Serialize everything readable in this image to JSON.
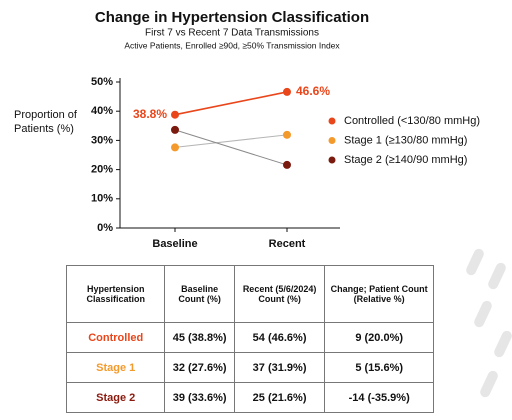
{
  "chart_data": {
    "type": "line",
    "title": "Change in Hypertension Classification",
    "subtitle": "First 7 vs Recent 7 Data Transmissions",
    "note": "Active Patients, Enrolled ≥90d,  ≥50% Transmission Index",
    "y_label": "Proportion of Patients (%)",
    "categories": [
      "Baseline",
      "Recent"
    ],
    "ylim": [
      0,
      50
    ],
    "yticks": [
      {
        "value": 0,
        "label": "0%"
      },
      {
        "value": 10,
        "label": "10%"
      },
      {
        "value": 20,
        "label": "20%"
      },
      {
        "value": 30,
        "label": "30%"
      },
      {
        "value": 40,
        "label": "40%"
      },
      {
        "value": 50,
        "label": "50%"
      }
    ],
    "legend": "right",
    "series": [
      {
        "name": "Controlled (<130/80 mmHg)",
        "color": "#e9461b",
        "line_color": "#e9461b",
        "values": [
          38.8,
          46.6
        ],
        "value_labels": [
          "38.8%",
          "46.6%"
        ]
      },
      {
        "name": "Stage 1 (≥130/80 mmHg)",
        "color": "#f49a2c",
        "line_color": "#b5b5b5",
        "values": [
          27.6,
          31.9
        ]
      },
      {
        "name": "Stage 2 (≥140/90 mmHg)",
        "color": "#7b1a0e",
        "line_color": "#8a8a8a",
        "values": [
          33.6,
          21.6
        ]
      }
    ]
  },
  "table": {
    "columns": [
      "Hypertension Classification",
      "Baseline Count (%)",
      "Recent (5/6/2024) Count (%)",
      "Change; Patient Count (Relative %)"
    ],
    "rows": [
      [
        "Controlled",
        "45 (38.8%)",
        "54 (46.6%)",
        "9 (20.0%)"
      ],
      [
        "Stage 1",
        "32 (27.6%)",
        "37 (31.9%)",
        "5 (15.6%)"
      ],
      [
        "Stage 2",
        "39 (33.6%)",
        "25 (21.6%)",
        "-14 (-35.9%)"
      ]
    ]
  }
}
